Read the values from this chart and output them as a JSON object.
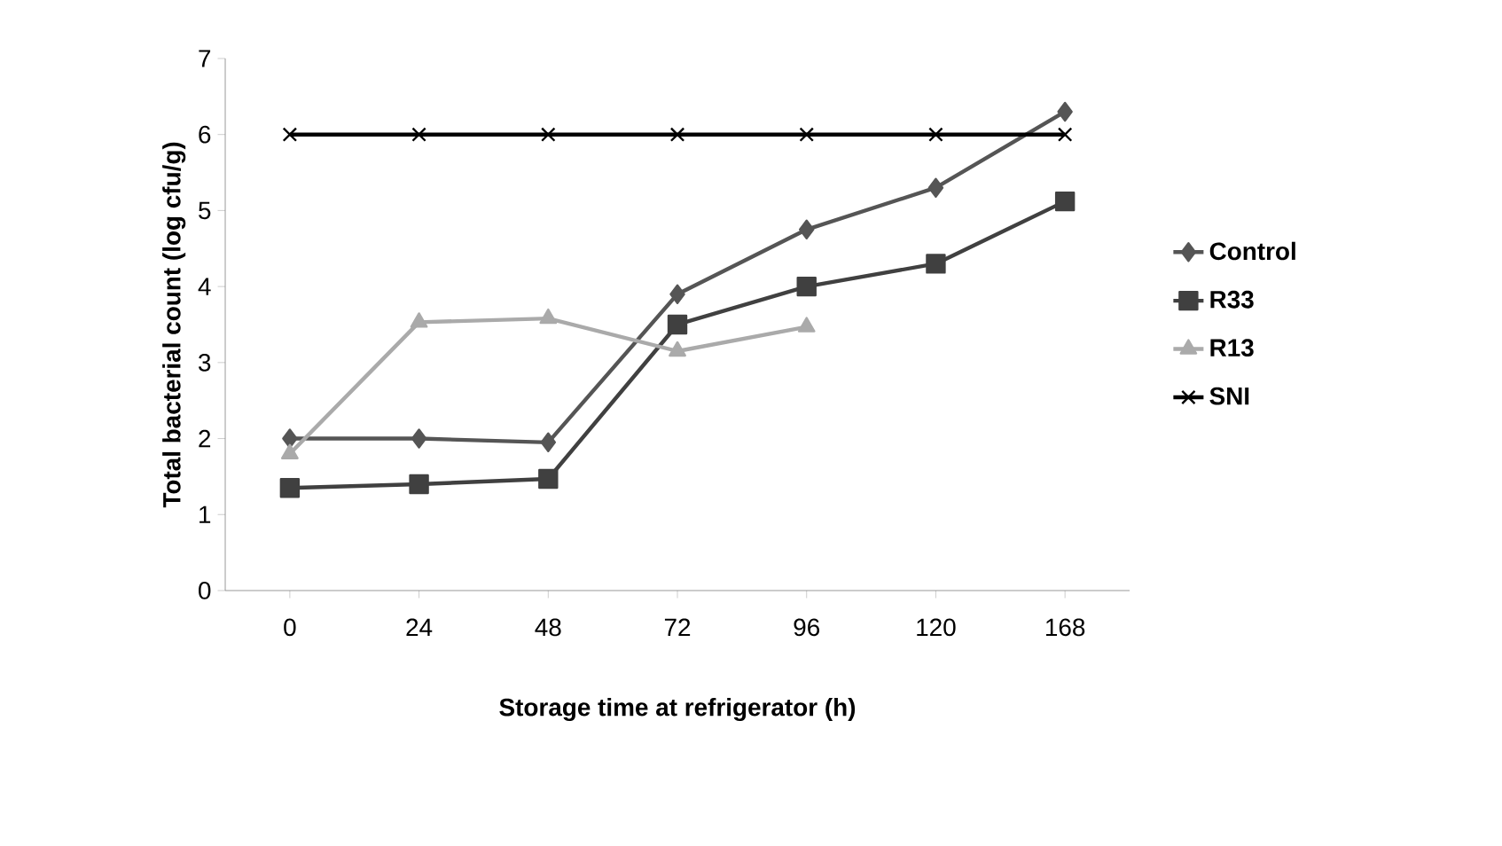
{
  "chart_data": {
    "type": "line",
    "xlabel": "Storage time at refrigerator (h)",
    "ylabel": "Total bacterial count (log cfu/g)",
    "categories": [
      "0",
      "24",
      "48",
      "72",
      "96",
      "120",
      "168"
    ],
    "ylim": [
      0,
      7
    ],
    "yticks": [
      0,
      1,
      2,
      3,
      4,
      5,
      6,
      7
    ],
    "legend": "right",
    "series": [
      {
        "name": "Control",
        "color": "#555555",
        "marker": "diamond",
        "values": [
          2.0,
          2.0,
          1.95,
          3.9,
          4.75,
          5.3,
          6.3
        ]
      },
      {
        "name": "R33",
        "color": "#404040",
        "marker": "square",
        "values": [
          1.35,
          1.4,
          1.47,
          3.5,
          4.0,
          4.3,
          5.12
        ]
      },
      {
        "name": "R13",
        "color": "#aaaaaa",
        "marker": "triangle",
        "values": [
          1.8,
          3.53,
          3.58,
          3.15,
          3.47,
          null,
          null
        ]
      },
      {
        "name": "SNI",
        "color": "#000000",
        "marker": "cross",
        "values": [
          6,
          6,
          6,
          6,
          6,
          6,
          6
        ]
      }
    ]
  }
}
